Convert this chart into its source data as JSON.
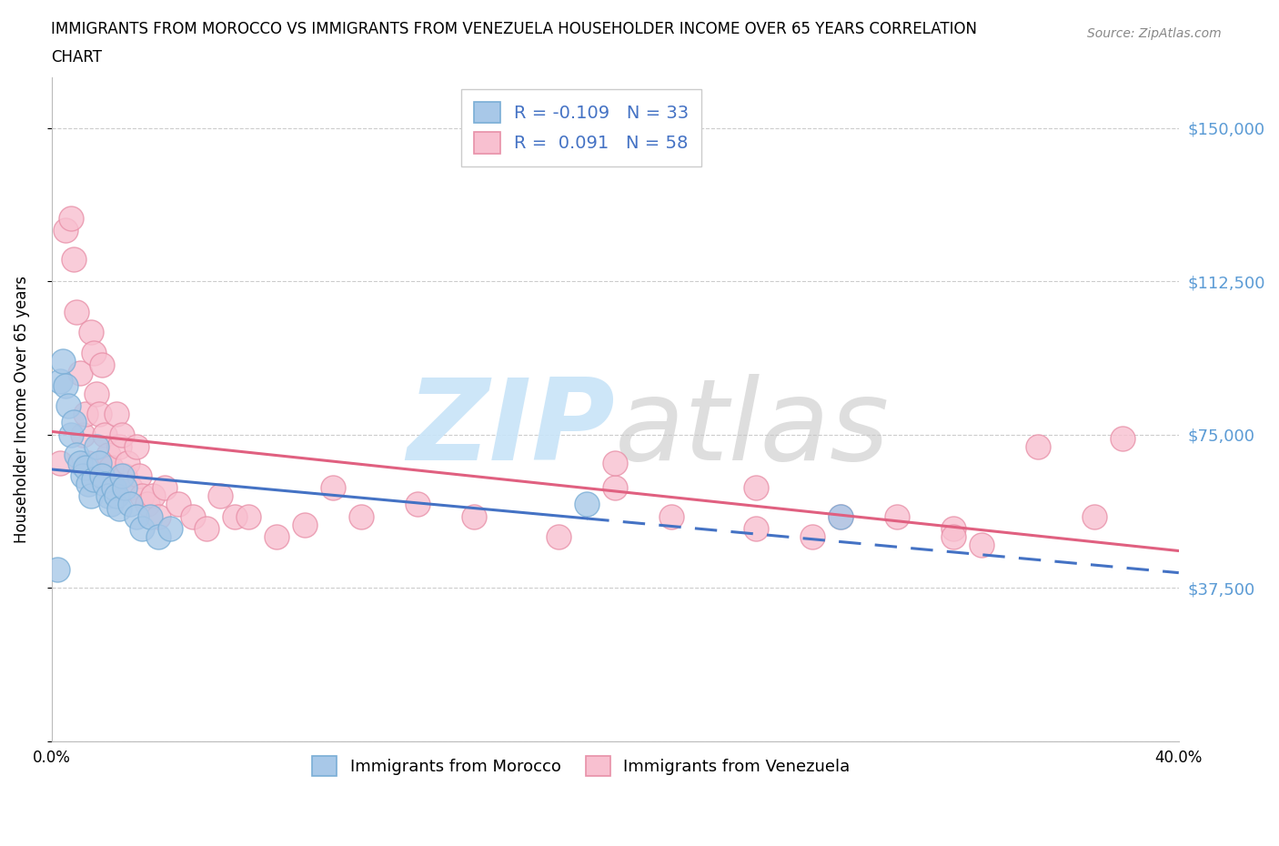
{
  "title_line1": "IMMIGRANTS FROM MOROCCO VS IMMIGRANTS FROM VENEZUELA HOUSEHOLDER INCOME OVER 65 YEARS CORRELATION",
  "title_line2": "CHART",
  "source": "Source: ZipAtlas.com",
  "ylabel": "Householder Income Over 65 years",
  "xlim": [
    0.0,
    0.4
  ],
  "ylim": [
    0,
    162500
  ],
  "yticks": [
    0,
    37500,
    75000,
    112500,
    150000
  ],
  "ytick_labels": [
    "",
    "$37,500",
    "$75,000",
    "$112,500",
    "$150,000"
  ],
  "xtick_vals": [
    0.0,
    0.05,
    0.1,
    0.15,
    0.2,
    0.25,
    0.3,
    0.35,
    0.4
  ],
  "xtick_labels": [
    "0.0%",
    "",
    "",
    "",
    "",
    "",
    "",
    "",
    "40.0%"
  ],
  "morocco_color": "#a8c8e8",
  "morocco_edge": "#7aaed6",
  "venezuela_color": "#f8c0d0",
  "venezuela_edge": "#e890a8",
  "morocco_R": -0.109,
  "morocco_N": 33,
  "venezuela_R": 0.091,
  "venezuela_N": 58,
  "morocco_scatter_x": [
    0.002,
    0.003,
    0.004,
    0.005,
    0.006,
    0.007,
    0.008,
    0.009,
    0.01,
    0.011,
    0.012,
    0.013,
    0.014,
    0.015,
    0.016,
    0.017,
    0.018,
    0.019,
    0.02,
    0.021,
    0.022,
    0.023,
    0.024,
    0.025,
    0.026,
    0.028,
    0.03,
    0.032,
    0.035,
    0.038,
    0.042,
    0.19,
    0.28
  ],
  "morocco_scatter_y": [
    42000,
    88000,
    93000,
    87000,
    82000,
    75000,
    78000,
    70000,
    68000,
    65000,
    67000,
    63000,
    60000,
    64000,
    72000,
    68000,
    65000,
    63000,
    60000,
    58000,
    62000,
    60000,
    57000,
    65000,
    62000,
    58000,
    55000,
    52000,
    55000,
    50000,
    52000,
    58000,
    55000
  ],
  "venezuela_scatter_x": [
    0.003,
    0.005,
    0.007,
    0.008,
    0.009,
    0.01,
    0.011,
    0.012,
    0.013,
    0.014,
    0.015,
    0.016,
    0.017,
    0.018,
    0.019,
    0.02,
    0.021,
    0.022,
    0.023,
    0.024,
    0.025,
    0.026,
    0.027,
    0.028,
    0.03,
    0.031,
    0.032,
    0.034,
    0.036,
    0.038,
    0.04,
    0.045,
    0.05,
    0.055,
    0.06,
    0.065,
    0.07,
    0.08,
    0.09,
    0.1,
    0.11,
    0.13,
    0.15,
    0.18,
    0.2,
    0.22,
    0.25,
    0.27,
    0.3,
    0.32,
    0.33,
    0.35,
    0.37,
    0.38,
    0.2,
    0.25,
    0.28,
    0.32
  ],
  "venezuela_scatter_y": [
    68000,
    125000,
    128000,
    118000,
    105000,
    90000,
    75000,
    80000,
    68000,
    100000,
    95000,
    85000,
    80000,
    92000,
    75000,
    70000,
    67000,
    62000,
    80000,
    72000,
    75000,
    65000,
    68000,
    62000,
    72000,
    65000,
    60000,
    58000,
    60000,
    55000,
    62000,
    58000,
    55000,
    52000,
    60000,
    55000,
    55000,
    50000,
    53000,
    62000,
    55000,
    58000,
    55000,
    50000,
    62000,
    55000,
    52000,
    50000,
    55000,
    52000,
    48000,
    72000,
    55000,
    74000,
    68000,
    62000,
    55000,
    50000
  ],
  "morocco_trend_color": "#4472c4",
  "venezuela_trend_color": "#e06080",
  "bg_color": "#ffffff",
  "grid_color": "#cccccc",
  "watermark_zip_color": "#c8e4f8",
  "watermark_atlas_color": "#c8c8c8"
}
